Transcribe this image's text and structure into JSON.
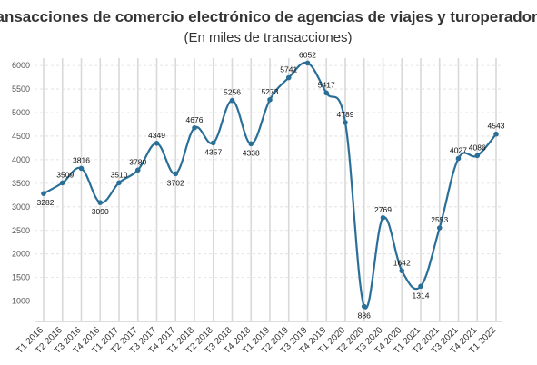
{
  "chart_data": {
    "type": "line",
    "title": "Transacciones de comercio electrónico de agencias de viajes y turoperadores",
    "subtitle": "(En miles de transacciones)",
    "xlabel": "",
    "ylabel": "",
    "ylim": [
      500,
      6100
    ],
    "yticks": [
      1000,
      1500,
      2000,
      2500,
      3000,
      3500,
      4000,
      4500,
      5000,
      5500,
      6000
    ],
    "grid": true,
    "legend": "none",
    "categories": [
      "T1 2016",
      "T2 2016",
      "T3 2016",
      "T4 2016",
      "T1 2017",
      "T2 2017",
      "T3 2017",
      "T4 2017",
      "T1 2018",
      "T2 2018",
      "T3 2018",
      "T4 2018",
      "T1 2019",
      "T2 2019",
      "T3 2019",
      "T4 2019",
      "T1 2020",
      "T2 2020",
      "T3 2020",
      "T4 2020",
      "T1 2021",
      "T2 2021",
      "T3 2021",
      "T4 2021",
      "T1 2022"
    ],
    "series": [
      {
        "values": [
          3282,
          3509,
          3816,
          3090,
          3510,
          3780,
          4349,
          3702,
          4676,
          4357,
          5256,
          4338,
          5273,
          5741,
          6052,
          5417,
          4789,
          886,
          2769,
          1642,
          1314,
          2553,
          4027,
          4086,
          4543
        ],
        "color": "#2a6f97"
      }
    ]
  }
}
